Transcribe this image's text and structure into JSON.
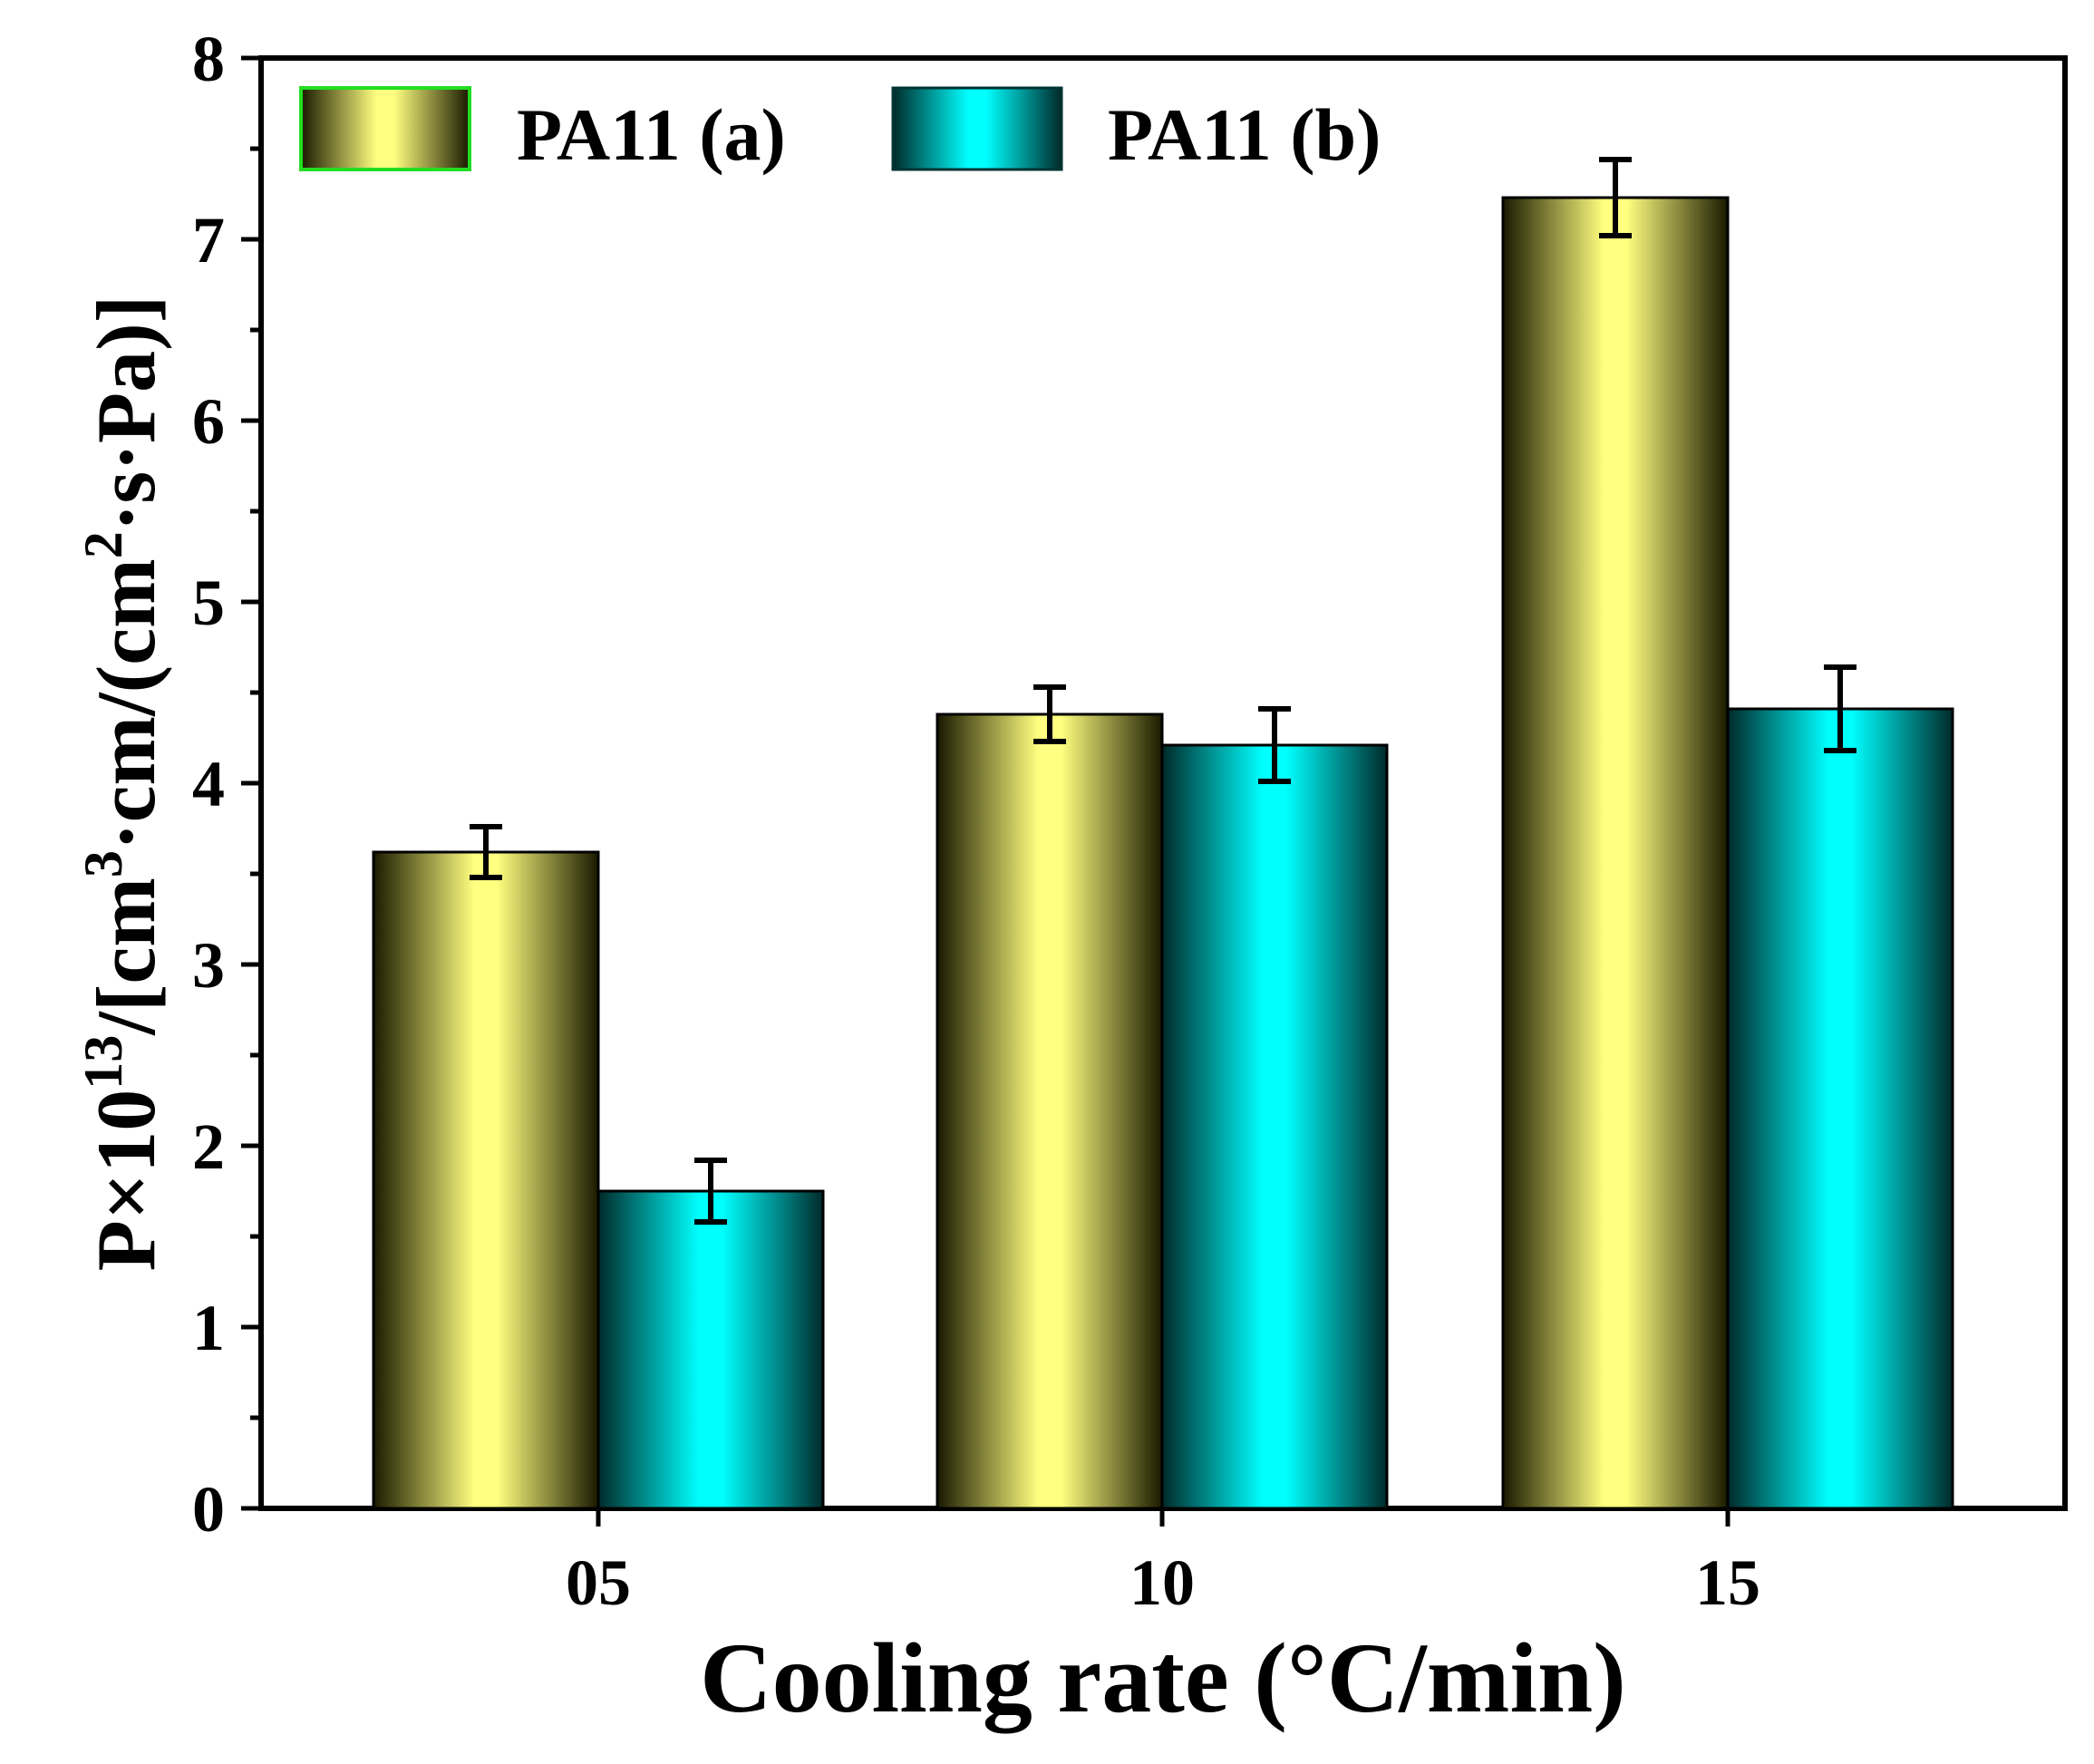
{
  "chart_data": {
    "type": "bar",
    "categories": [
      "05",
      "10",
      "15"
    ],
    "series": [
      {
        "name": "PA11 (a)",
        "color": "#FFFF7A",
        "values": [
          3.62,
          4.38,
          7.23
        ],
        "errors": [
          0.14,
          0.15,
          0.21
        ]
      },
      {
        "name": "PA11 (b)",
        "color": "#00FFFF",
        "values": [
          1.75,
          4.21,
          4.41
        ],
        "errors": [
          0.17,
          0.2,
          0.23
        ]
      }
    ],
    "xlabel": "Cooling rate (°C/min)",
    "ylabel": {
      "prefix": "P×10",
      "exp1": "13",
      "mid": "/[cm",
      "exp2": "3",
      "mid2": "·cm/(cm",
      "exp3": "2",
      "suffix": "·s·Pa)]"
    },
    "ylim": [
      0,
      8
    ],
    "yticks": [
      "0",
      "1",
      "2",
      "3",
      "4",
      "5",
      "6",
      "7",
      "8"
    ],
    "legend_position": "top-left"
  }
}
